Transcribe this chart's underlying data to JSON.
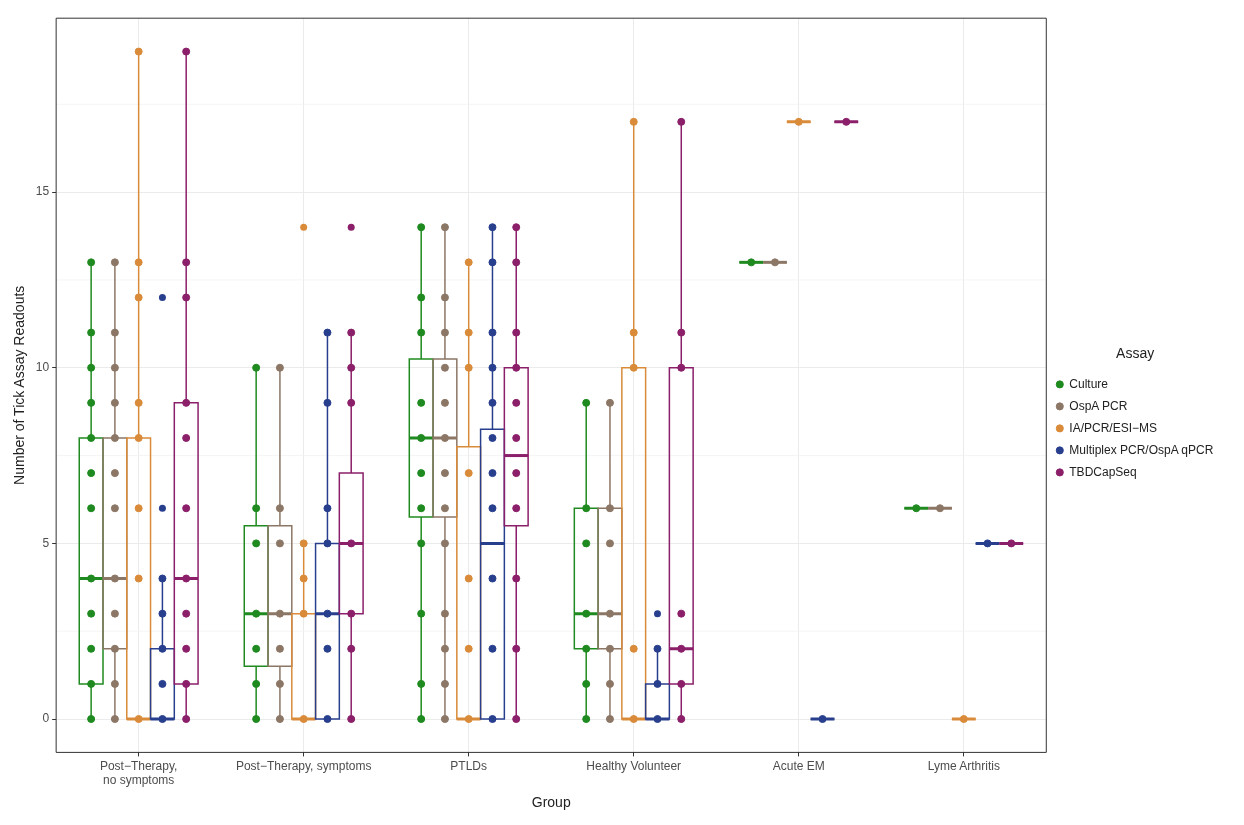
{
  "chart_data": {
    "type": "box",
    "xlabel": "Group",
    "ylabel": "Number of Tick Assay Readouts",
    "legend_title": "Assay",
    "legend": "right",
    "grid": true,
    "marker": "circle",
    "categories": [
      "Post−Therapy,\nno symptoms",
      "Post−Therapy, symptoms",
      "PTLDs",
      "Healthy Volunteer",
      "Acute EM",
      "Lyme Arthritis"
    ],
    "ylim": [
      -0.95,
      19.95
    ],
    "yticks": [
      0,
      5,
      10,
      15
    ],
    "series": [
      {
        "name": "Culture",
        "color": "#1f8a1f",
        "boxes": [
          {
            "low": 0,
            "q1": 1,
            "median": 4,
            "q3": 8,
            "high": 13
          },
          {
            "low": 0,
            "q1": 1.5,
            "median": 3,
            "q3": 5.5,
            "high": 10
          },
          {
            "low": 0,
            "q1": 5.75,
            "median": 8,
            "q3": 10.25,
            "high": 14
          },
          {
            "low": 0,
            "q1": 2,
            "median": 3,
            "q3": 6,
            "high": 9
          },
          {
            "low": 13,
            "q1": 13,
            "median": 13,
            "q3": 13,
            "high": 13
          },
          {
            "low": 6,
            "q1": 6,
            "median": 6,
            "q3": 6,
            "high": 6
          }
        ]
      },
      {
        "name": "OspA PCR",
        "color": "#8c7766",
        "boxes": [
          {
            "low": 0,
            "q1": 2,
            "median": 4,
            "q3": 8,
            "high": 13
          },
          {
            "low": 0,
            "q1": 1.5,
            "median": 3,
            "q3": 5.5,
            "high": 10
          },
          {
            "low": 0,
            "q1": 5.75,
            "median": 8,
            "q3": 10.25,
            "high": 14
          },
          {
            "low": 0,
            "q1": 2,
            "median": 3,
            "q3": 6,
            "high": 9
          },
          {
            "low": 13,
            "q1": 13,
            "median": 13,
            "q3": 13,
            "high": 13
          },
          {
            "low": 6,
            "q1": 6,
            "median": 6,
            "q3": 6,
            "high": 6
          }
        ]
      },
      {
        "name": "IA/PCR/ESI−MS",
        "color": "#d98b3a",
        "boxes": [
          {
            "low": 0,
            "q1": 0,
            "median": 0,
            "q3": 8,
            "high": 19
          },
          {
            "low": 0,
            "q1": 0,
            "median": 0,
            "q3": 3,
            "high": 5,
            "outliers": [
              14
            ]
          },
          {
            "low": 0,
            "q1": 0,
            "median": 0,
            "q3": 7.75,
            "high": 13
          },
          {
            "low": 0,
            "q1": 0,
            "median": 0,
            "q3": 10,
            "high": 17
          },
          {
            "low": 17,
            "q1": 17,
            "median": 17,
            "q3": 17,
            "high": 17
          },
          {
            "low": 0,
            "q1": 0,
            "median": 0,
            "q3": 0,
            "high": 0
          }
        ]
      },
      {
        "name": "Multiplex PCR/OspA qPCR",
        "color": "#283f8e",
        "boxes": [
          {
            "low": 0,
            "q1": 0,
            "median": 0,
            "q3": 2,
            "high": 4,
            "outliers": [
              6,
              12
            ]
          },
          {
            "low": 0,
            "q1": 0,
            "median": 3,
            "q3": 5,
            "high": 11
          },
          {
            "low": 0,
            "q1": 0,
            "median": 5,
            "q3": 8.25,
            "high": 14
          },
          {
            "low": 0,
            "q1": 0,
            "median": 0,
            "q3": 1,
            "high": 2,
            "outliers": [
              3
            ]
          },
          {
            "low": 0,
            "q1": 0,
            "median": 0,
            "q3": 0,
            "high": 0
          },
          {
            "low": 5,
            "q1": 5,
            "median": 5,
            "q3": 5,
            "high": 5
          }
        ]
      },
      {
        "name": "TBDCapSeq",
        "color": "#8b1f6a",
        "boxes": [
          {
            "low": 0,
            "q1": 1,
            "median": 4,
            "q3": 9,
            "high": 19
          },
          {
            "low": 0,
            "q1": 3,
            "median": 5,
            "q3": 7,
            "high": 11,
            "outliers": [
              14
            ]
          },
          {
            "low": 0,
            "q1": 5.5,
            "median": 7.5,
            "q3": 10,
            "high": 14
          },
          {
            "low": 0,
            "q1": 1,
            "median": 2,
            "q3": 10,
            "high": 17
          },
          {
            "low": 17,
            "q1": 17,
            "median": 17,
            "q3": 17,
            "high": 17
          },
          {
            "low": 5,
            "q1": 5,
            "median": 5,
            "q3": 5,
            "high": 5
          }
        ]
      },
      {
        "type": "scatter",
        "color": "#1f8a1f",
        "x": [
          "Post−Therapy,\nno symptoms",
          "Post−Therapy,\nno symptoms",
          "Post−Therapy,\nno symptoms",
          "Post−Therapy,\nno symptoms",
          "Post−Therapy,\nno symptoms",
          "Post−Therapy,\nno symptoms",
          "Post−Therapy,\nno symptoms",
          "Post−Therapy,\nno symptoms",
          "Post−Therapy,\nno symptoms",
          "Post−Therapy,\nno symptoms",
          "Post−Therapy,\nno symptoms",
          "Post−Therapy,\nno symptoms",
          "Post−Therapy, symptoms",
          "Post−Therapy, symptoms",
          "Post−Therapy, symptoms",
          "Post−Therapy, symptoms",
          "Post−Therapy, symptoms",
          "Post−Therapy, symptoms",
          "Post−Therapy, symptoms",
          "PTLDs",
          "PTLDs",
          "PTLDs",
          "PTLDs",
          "PTLDs",
          "PTLDs",
          "PTLDs",
          "PTLDs",
          "PTLDs",
          "PTLDs",
          "PTLDs",
          "Healthy Volunteer",
          "Healthy Volunteer",
          "Healthy Volunteer",
          "Healthy Volunteer",
          "Healthy Volunteer",
          "Healthy Volunteer",
          "Healthy Volunteer",
          "Acute EM",
          "Lyme Arthritis"
        ],
        "values": [
          0,
          1,
          2,
          3,
          4,
          6,
          7,
          8,
          9,
          10,
          11,
          13,
          0,
          1,
          2,
          3,
          5,
          6,
          10,
          0,
          1,
          3,
          5,
          6,
          7,
          8,
          9,
          11,
          12,
          14,
          0,
          1,
          2,
          3,
          5,
          6,
          9,
          13,
          6
        ]
      },
      {
        "type": "scatter",
        "color": "#8c7766",
        "x": [
          "Post−Therapy,\nno symptoms",
          "Post−Therapy,\nno symptoms",
          "Post−Therapy,\nno symptoms",
          "Post−Therapy,\nno symptoms",
          "Post−Therapy,\nno symptoms",
          "Post−Therapy,\nno symptoms",
          "Post−Therapy,\nno symptoms",
          "Post−Therapy,\nno symptoms",
          "Post−Therapy,\nno symptoms",
          "Post−Therapy,\nno symptoms",
          "Post−Therapy,\nno symptoms",
          "Post−Therapy,\nno symptoms",
          "Post−Therapy, symptoms",
          "Post−Therapy, symptoms",
          "Post−Therapy, symptoms",
          "Post−Therapy, symptoms",
          "Post−Therapy, symptoms",
          "Post−Therapy, symptoms",
          "Post−Therapy, symptoms",
          "PTLDs",
          "PTLDs",
          "PTLDs",
          "PTLDs",
          "PTLDs",
          "PTLDs",
          "PTLDs",
          "PTLDs",
          "PTLDs",
          "PTLDs",
          "PTLDs",
          "PTLDs",
          "PTLDs",
          "Healthy Volunteer",
          "Healthy Volunteer",
          "Healthy Volunteer",
          "Healthy Volunteer",
          "Healthy Volunteer",
          "Healthy Volunteer",
          "Healthy Volunteer",
          "Acute EM",
          "Lyme Arthritis"
        ],
        "values": [
          0,
          1,
          2,
          3,
          4,
          6,
          7,
          8,
          9,
          10,
          11,
          13,
          0,
          1,
          2,
          3,
          5,
          6,
          10,
          0,
          1,
          2,
          3,
          5,
          6,
          7,
          8,
          9,
          10,
          11,
          12,
          14,
          0,
          1,
          2,
          3,
          5,
          6,
          9,
          13,
          6
        ]
      },
      {
        "type": "scatter",
        "color": "#d98b3a",
        "x": [
          "Post−Therapy,\nno symptoms",
          "Post−Therapy,\nno symptoms",
          "Post−Therapy,\nno symptoms",
          "Post−Therapy,\nno symptoms",
          "Post−Therapy,\nno symptoms",
          "Post−Therapy,\nno symptoms",
          "Post−Therapy,\nno symptoms",
          "Post−Therapy,\nno symptoms",
          "Post−Therapy, symptoms",
          "Post−Therapy, symptoms",
          "Post−Therapy, symptoms",
          "Post−Therapy, symptoms",
          "PTLDs",
          "PTLDs",
          "PTLDs",
          "PTLDs",
          "PTLDs",
          "PTLDs",
          "PTLDs",
          "Healthy Volunteer",
          "Healthy Volunteer",
          "Healthy Volunteer",
          "Healthy Volunteer",
          "Healthy Volunteer",
          "Acute EM",
          "Lyme Arthritis"
        ],
        "values": [
          0,
          4,
          6,
          8,
          9,
          12,
          13,
          19,
          0,
          3,
          4,
          5,
          0,
          2,
          4,
          7,
          10,
          11,
          13,
          0,
          2,
          10,
          11,
          17,
          17,
          0
        ]
      },
      {
        "type": "scatter",
        "color": "#283f8e",
        "x": [
          "Post−Therapy,\nno symptoms",
          "Post−Therapy,\nno symptoms",
          "Post−Therapy,\nno symptoms",
          "Post−Therapy,\nno symptoms",
          "Post−Therapy,\nno symptoms",
          "Post−Therapy, symptoms",
          "Post−Therapy, symptoms",
          "Post−Therapy, symptoms",
          "Post−Therapy, symptoms",
          "Post−Therapy, symptoms",
          "Post−Therapy, symptoms",
          "Post−Therapy, symptoms",
          "PTLDs",
          "PTLDs",
          "PTLDs",
          "PTLDs",
          "PTLDs",
          "PTLDs",
          "PTLDs",
          "PTLDs",
          "PTLDs",
          "PTLDs",
          "PTLDs",
          "Healthy Volunteer",
          "Healthy Volunteer",
          "Healthy Volunteer",
          "Acute EM",
          "Lyme Arthritis"
        ],
        "values": [
          0,
          1,
          2,
          3,
          4,
          0,
          2,
          3,
          5,
          6,
          9,
          11,
          0,
          2,
          4,
          6,
          7,
          8,
          9,
          10,
          11,
          13,
          14,
          0,
          1,
          2,
          0,
          5
        ]
      },
      {
        "type": "scatter",
        "color": "#8b1f6a",
        "x": [
          "Post−Therapy,\nno symptoms",
          "Post−Therapy,\nno symptoms",
          "Post−Therapy,\nno symptoms",
          "Post−Therapy,\nno symptoms",
          "Post−Therapy,\nno symptoms",
          "Post−Therapy,\nno symptoms",
          "Post−Therapy,\nno symptoms",
          "Post−Therapy,\nno symptoms",
          "Post−Therapy,\nno symptoms",
          "Post−Therapy,\nno symptoms",
          "Post−Therapy,\nno symptoms",
          "Post−Therapy, symptoms",
          "Post−Therapy, symptoms",
          "Post−Therapy, symptoms",
          "Post−Therapy, symptoms",
          "Post−Therapy, symptoms",
          "Post−Therapy, symptoms",
          "Post−Therapy, symptoms",
          "PTLDs",
          "PTLDs",
          "PTLDs",
          "PTLDs",
          "PTLDs",
          "PTLDs",
          "PTLDs",
          "PTLDs",
          "PTLDs",
          "PTLDs",
          "PTLDs",
          "Healthy Volunteer",
          "Healthy Volunteer",
          "Healthy Volunteer",
          "Healthy Volunteer",
          "Healthy Volunteer",
          "Healthy Volunteer",
          "Healthy Volunteer",
          "Acute EM",
          "Lyme Arthritis"
        ],
        "values": [
          0,
          1,
          2,
          3,
          4,
          6,
          8,
          9,
          12,
          13,
          19,
          0,
          2,
          3,
          5,
          9,
          10,
          11,
          0,
          2,
          4,
          6,
          7,
          8,
          9,
          10,
          11,
          13,
          14,
          0,
          1,
          2,
          3,
          10,
          11,
          17,
          17,
          5
        ]
      }
    ]
  }
}
